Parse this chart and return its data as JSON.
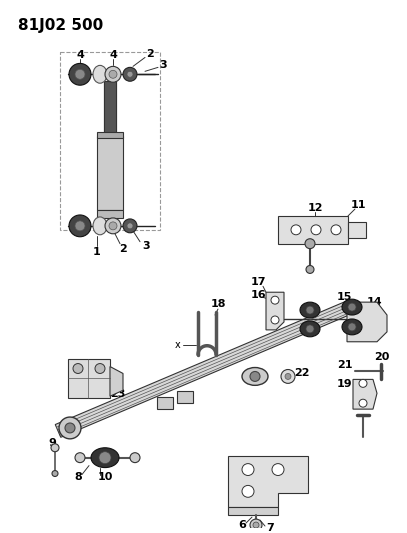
{
  "title": "81J02 500",
  "bg_color": "#ffffff",
  "line_color": "#000000",
  "figsize": [
    4.07,
    5.33
  ],
  "dpi": 100
}
